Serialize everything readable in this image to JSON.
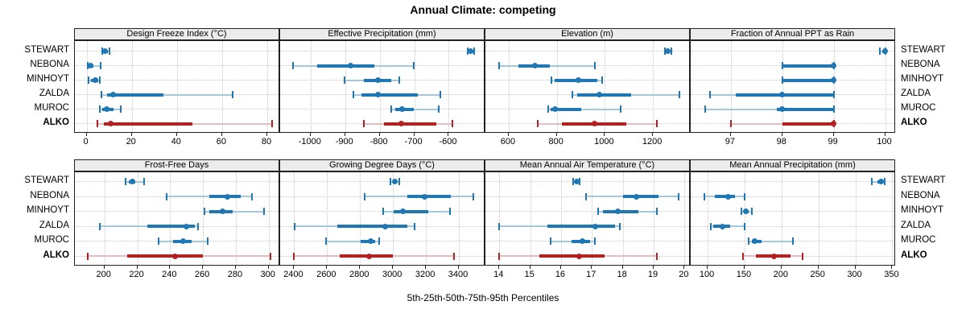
{
  "title": "Annual Climate: competing",
  "caption": "5th-25th-50th-75th-95th Percentiles",
  "sites": [
    "STEWART",
    "NEBONA",
    "MINHOYT",
    "ZALDA",
    "MUROC",
    "ALKO"
  ],
  "highlight_site": "ALKO",
  "colors": {
    "blue": "#1f77b4",
    "blue_light": "#a5c8e1",
    "red": "#b22222",
    "red_light": "#e8bcbc",
    "strip_bg": "#ececec",
    "grid": "#c6c6c6",
    "border": "#222222"
  },
  "chart_data": {
    "type": "dotplot-percentiles",
    "percentiles": [
      5,
      25,
      50,
      75,
      95
    ],
    "legend_note": "values per site are [p5, p25, p50, p75, p95]",
    "panels": [
      {
        "title": "Design Freeze Index (°C)",
        "xlim": [
          -5.2,
          85.7
        ],
        "ticks": [
          0,
          20,
          40,
          60,
          80
        ],
        "values": [
          [
            7,
            7.5,
            8.3,
            9.5,
            10.1
          ],
          [
            0.5,
            1,
            1.6,
            3,
            6.3
          ],
          [
            1,
            2,
            3.9,
            5.3,
            6
          ],
          [
            6.5,
            9,
            11.6,
            34,
            64.5
          ],
          [
            6,
            7,
            9,
            12,
            15
          ],
          [
            4.7,
            7.6,
            10.7,
            47,
            82
          ]
        ]
      },
      {
        "title": "Effective Precipitation (mm)",
        "xlim": [
          -1088,
          -494
        ],
        "ticks": [
          -1000,
          -900,
          -800,
          -700,
          -600
        ],
        "values": [
          [
            -545,
            -540,
            -536,
            -530,
            -526
          ],
          [
            -1050,
            -982,
            -885,
            -815,
            -701
          ],
          [
            -901,
            -846,
            -804,
            -766,
            -743
          ],
          [
            -877,
            -853,
            -805,
            -690,
            -625
          ],
          [
            -767,
            -755,
            -735,
            -701,
            -629
          ],
          [
            -846,
            -788,
            -737,
            -636,
            -590
          ]
        ]
      },
      {
        "title": "Elevation (m)",
        "xlim": [
          503,
          1357
        ],
        "ticks": [
          600,
          800,
          1000,
          1200
        ],
        "values": [
          [
            1250,
            1257,
            1262,
            1268,
            1277
          ],
          [
            560,
            640,
            710,
            772,
            958
          ],
          [
            778,
            790,
            890,
            968,
            988
          ],
          [
            866,
            885,
            976,
            1108,
            1310
          ],
          [
            764,
            774,
            794,
            900,
            1066
          ],
          [
            720,
            820,
            958,
            1090,
            1216
          ]
        ]
      },
      {
        "title": "Fraction of Annual PPT as Rain",
        "xlim": [
          96.22,
          100.21
        ],
        "ticks": [
          97,
          98,
          99,
          100
        ],
        "values": [
          [
            99.9,
            99.95,
            100,
            100,
            100
          ],
          [
            98,
            98,
            99,
            99,
            99
          ],
          [
            98,
            98,
            99,
            99,
            99
          ],
          [
            96.6,
            97.1,
            98,
            99,
            99
          ],
          [
            96.5,
            97.9,
            98,
            99,
            99
          ],
          [
            97,
            98,
            99,
            99,
            99
          ]
        ]
      },
      {
        "title": "Frost-Free Days",
        "xlim": [
          182,
          307
        ],
        "ticks": [
          200,
          220,
          240,
          260,
          280,
          300
        ],
        "values": [
          [
            213,
            215,
            217,
            219,
            224
          ],
          [
            238,
            264,
            275,
            283,
            290
          ],
          [
            261,
            264,
            272,
            278,
            297
          ],
          [
            197,
            226,
            250,
            255,
            257
          ],
          [
            233,
            242,
            248,
            253,
            263
          ],
          [
            190,
            214,
            243,
            260,
            301
          ]
        ]
      },
      {
        "title": "Growing Degree Days (°C)",
        "xlim": [
          2315,
          3561
        ],
        "ticks": [
          2400,
          2600,
          2800,
          3000,
          3200,
          3400
        ],
        "values": [
          [
            2985,
            3000,
            3010,
            3022,
            3040
          ],
          [
            2830,
            3085,
            3190,
            3350,
            3490
          ],
          [
            2940,
            3005,
            3060,
            3215,
            3345
          ],
          [
            2405,
            2660,
            2955,
            3085,
            3130
          ],
          [
            2595,
            2805,
            2865,
            2890,
            2915
          ],
          [
            2400,
            2675,
            2855,
            3000,
            3370
          ]
        ]
      },
      {
        "title": "Mean Annual Air Temperature (°C)",
        "xlim": [
          13.55,
          20.2
        ],
        "ticks": [
          14,
          15,
          16,
          17,
          18,
          19,
          20
        ],
        "values": [
          [
            16.4,
            16.45,
            16.5,
            16.55,
            16.6
          ],
          [
            16.8,
            18.0,
            18.45,
            19.15,
            19.8
          ],
          [
            17.2,
            17.35,
            17.85,
            18.5,
            19.1
          ],
          [
            14.0,
            15.55,
            17.1,
            17.75,
            17.9
          ],
          [
            15.65,
            16.35,
            16.7,
            16.95,
            17.1
          ],
          [
            14.0,
            15.3,
            16.6,
            17.4,
            19.1
          ]
        ]
      },
      {
        "title": "Mean Annual Precipitation (mm)",
        "xlim": [
          77,
          355
        ],
        "ticks": [
          100,
          150,
          200,
          250,
          300,
          350
        ],
        "values": [
          [
            322,
            330,
            335,
            338,
            340
          ],
          [
            96,
            110,
            128,
            137,
            150
          ],
          [
            146,
            149,
            152,
            156,
            160
          ],
          [
            104,
            108,
            120,
            130,
            150
          ],
          [
            156,
            160,
            164,
            173,
            215
          ],
          [
            148,
            165,
            190,
            212,
            228
          ]
        ]
      }
    ]
  }
}
